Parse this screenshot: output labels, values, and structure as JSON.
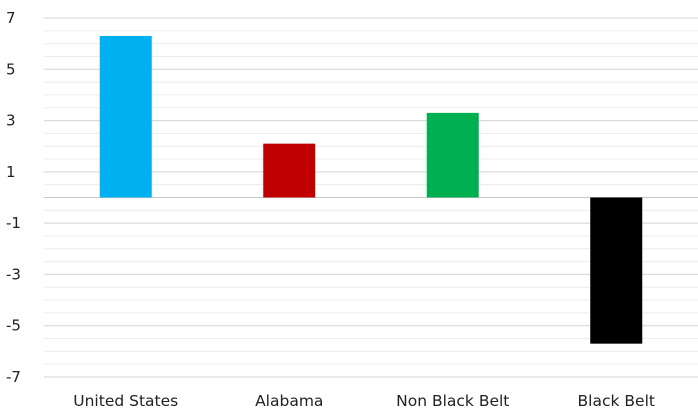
{
  "chart_data": {
    "type": "bar",
    "title": "",
    "xlabel": "",
    "ylabel": "",
    "categories": [
      "United States",
      "Alabama",
      "Non Black Belt",
      "Black Belt"
    ],
    "values": [
      6.3,
      2.1,
      3.3,
      -5.7
    ],
    "colors": [
      "#00b0f0",
      "#c00000",
      "#00b050",
      "#000000"
    ],
    "ylim": [
      -7,
      7
    ],
    "yticks": [
      7,
      5,
      3,
      1,
      -1,
      -3,
      -5,
      -7
    ],
    "grid": true,
    "minor_grid": true,
    "legend": "none"
  }
}
